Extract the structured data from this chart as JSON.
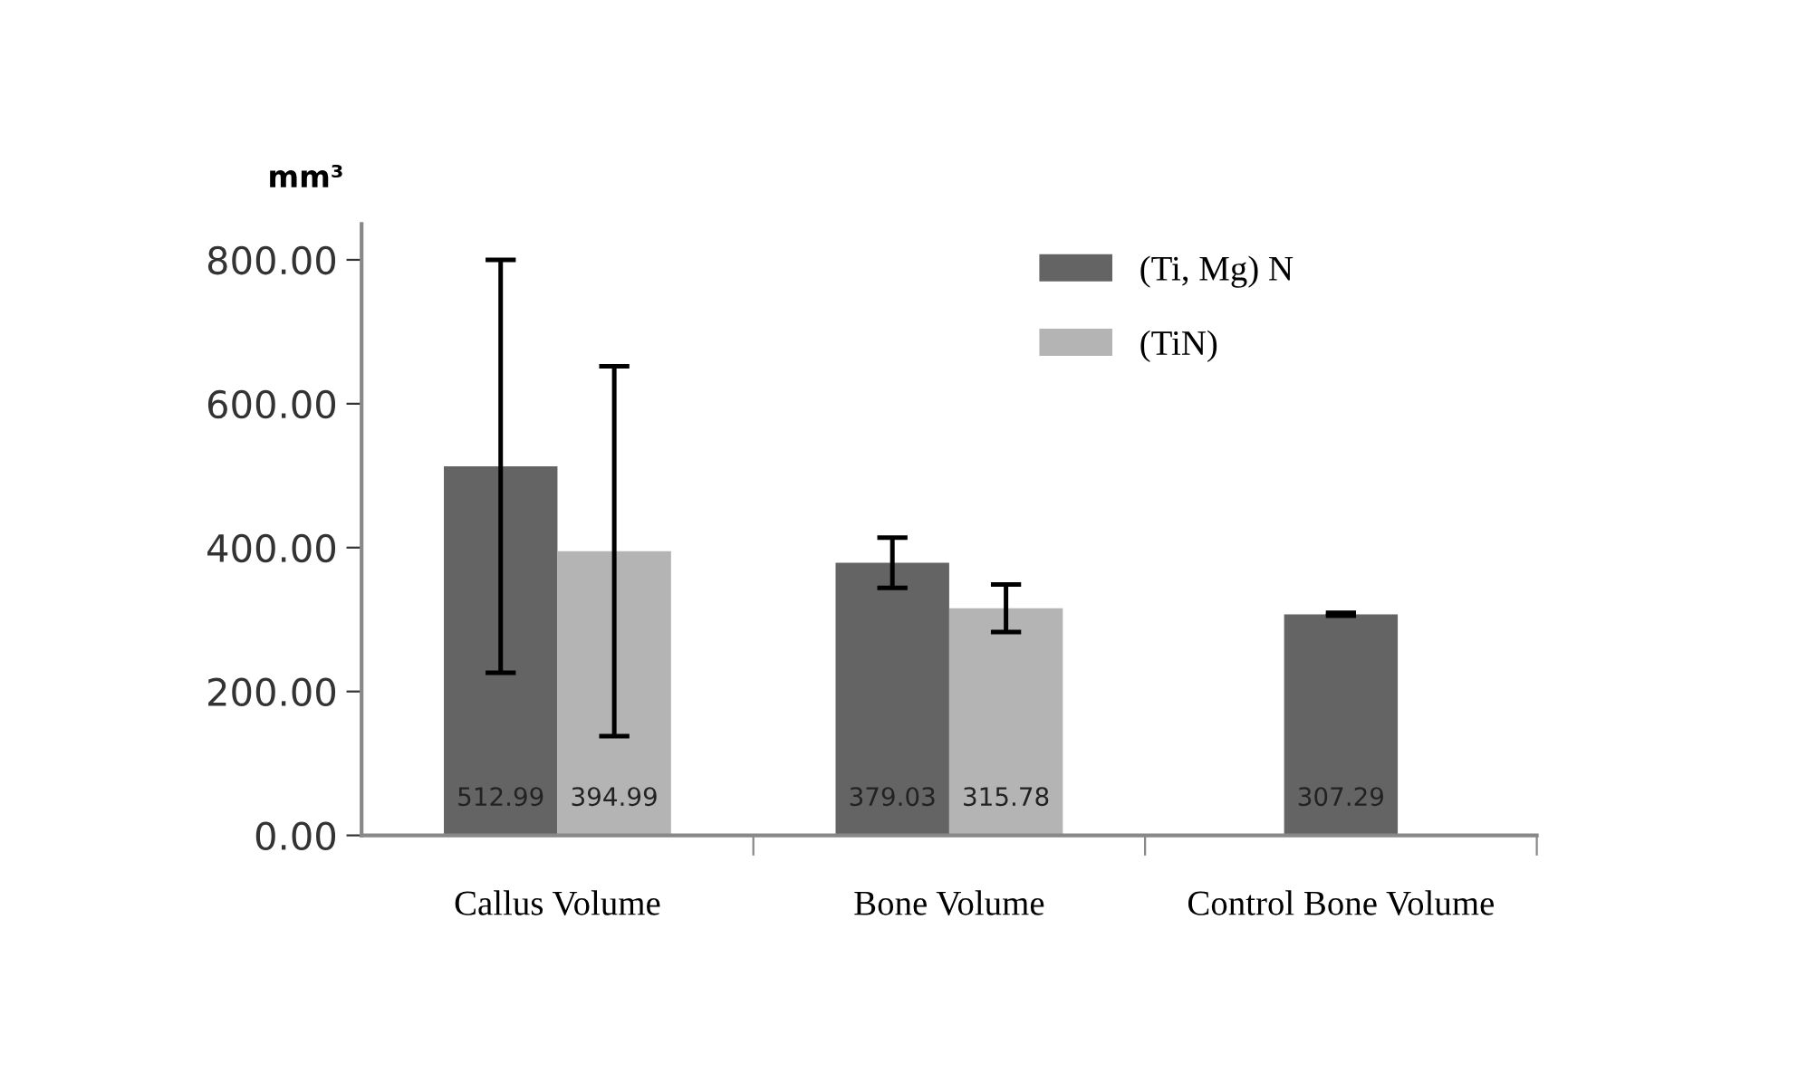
{
  "chart_data": {
    "type": "bar",
    "ylabel": "mm³",
    "categories": [
      "Callus Volume",
      "Bone Volume",
      "Control Bone Volume"
    ],
    "series": [
      {
        "name": "(Ti, Mg) N",
        "color": "#646464",
        "values": [
          512.99,
          379.03,
          307.29
        ],
        "errors": [
          287,
          35,
          2
        ]
      },
      {
        "name": "(TiN)",
        "color": "#b4b4b4",
        "values": [
          394.99,
          315.78,
          null
        ],
        "errors": [
          257,
          33,
          null
        ]
      }
    ],
    "ylim": [
      0,
      850
    ],
    "yticks": [
      {
        "value": 0,
        "label": "0.00"
      },
      {
        "value": 200,
        "label": "200.00"
      },
      {
        "value": 400,
        "label": "400.00"
      },
      {
        "value": 600,
        "label": "600.00"
      },
      {
        "value": 800,
        "label": "800.00"
      }
    ],
    "data_labels": true,
    "grid": false,
    "legend": "top right"
  }
}
